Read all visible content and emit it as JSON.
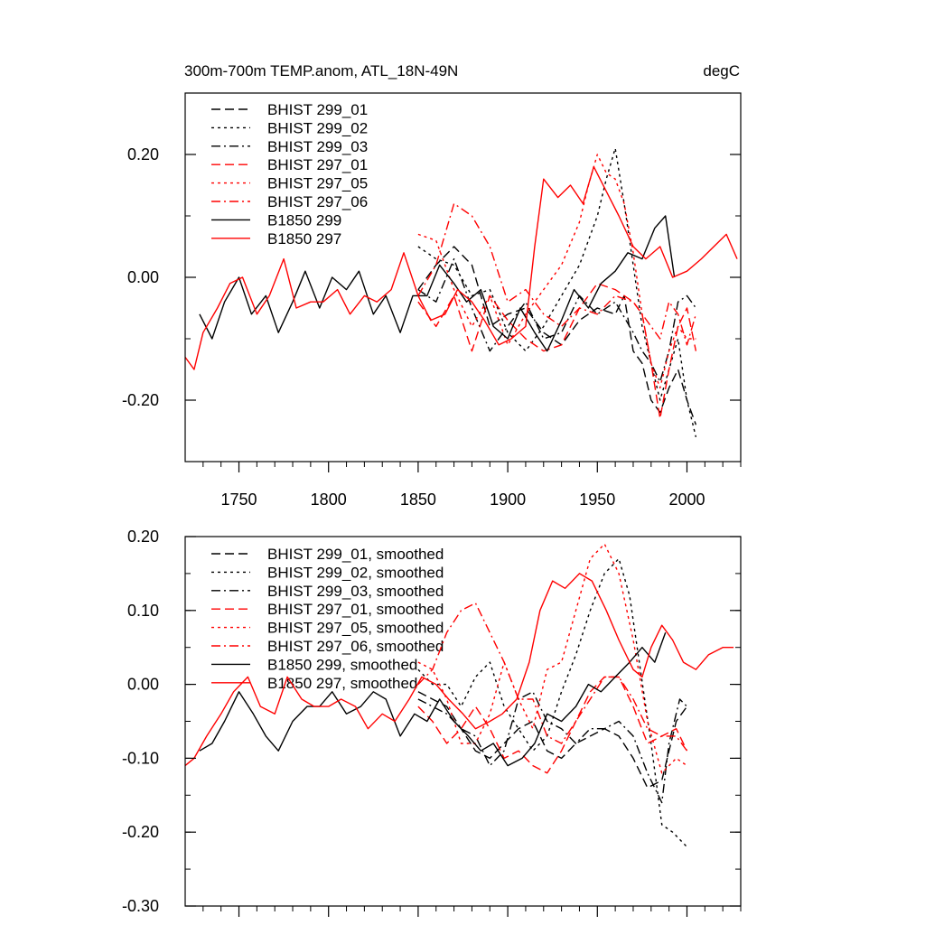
{
  "colors": {
    "black": "#000000",
    "red": "#ff0000"
  },
  "chart_data": [
    {
      "type": "line",
      "title": "300m-700m TEMP.anom, ATL_18N-49N",
      "units": "degC",
      "xlim": [
        1720,
        2030
      ],
      "ylim": [
        -0.3,
        0.3
      ],
      "xticks": [
        1750,
        1800,
        1850,
        1900,
        1950,
        2000
      ],
      "xtick_labels": [
        "1750",
        "1800",
        "1850",
        "1900",
        "1950",
        "2000"
      ],
      "yticks": [
        -0.2,
        0.0,
        0.2
      ],
      "ytick_labels": [
        "-0.20",
        "0.00",
        "0.20"
      ],
      "legend_position": "top-left",
      "series": [
        {
          "name": "BHIST 299_01",
          "color": "#000000",
          "dash": "dash",
          "x": [
            1850,
            1860,
            1870,
            1880,
            1890,
            1900,
            1910,
            1920,
            1930,
            1940,
            1950,
            1960,
            1965,
            1970,
            1975,
            1980,
            1985,
            1990,
            1995,
            2000,
            2005
          ],
          "y": [
            -0.02,
            0.02,
            0.05,
            0.02,
            -0.08,
            -0.06,
            -0.05,
            -0.09,
            -0.11,
            -0.07,
            -0.05,
            -0.06,
            -0.03,
            -0.12,
            -0.14,
            -0.2,
            -0.22,
            -0.18,
            -0.15,
            -0.2,
            -0.24
          ]
        },
        {
          "name": "BHIST 299_02",
          "color": "#000000",
          "dash": "dot",
          "x": [
            1850,
            1860,
            1870,
            1880,
            1890,
            1900,
            1910,
            1920,
            1930,
            1940,
            1950,
            1955,
            1960,
            1965,
            1970,
            1975,
            1980,
            1985,
            1990,
            1995,
            2000,
            2005
          ],
          "y": [
            0.05,
            0.03,
            0.02,
            -0.03,
            -0.02,
            -0.09,
            -0.12,
            -0.08,
            -0.03,
            0.02,
            0.1,
            0.16,
            0.21,
            0.12,
            0.02,
            -0.08,
            -0.14,
            -0.2,
            -0.15,
            -0.1,
            -0.2,
            -0.26
          ]
        },
        {
          "name": "BHIST 299_03",
          "color": "#000000",
          "dash": "dashdot",
          "x": [
            1850,
            1860,
            1870,
            1880,
            1890,
            1900,
            1910,
            1920,
            1930,
            1940,
            1950,
            1960,
            1970,
            1975,
            1980,
            1985,
            1990,
            1995,
            2000,
            2005
          ],
          "y": [
            -0.02,
            -0.04,
            0.03,
            -0.05,
            -0.12,
            -0.08,
            -0.04,
            -0.1,
            -0.09,
            -0.03,
            -0.06,
            -0.04,
            -0.09,
            -0.12,
            -0.14,
            -0.17,
            -0.12,
            -0.04,
            -0.03,
            -0.05
          ]
        },
        {
          "name": "BHIST 297_01",
          "color": "#ff0000",
          "dash": "dash",
          "x": [
            1850,
            1860,
            1870,
            1880,
            1890,
            1900,
            1910,
            1920,
            1930,
            1940,
            1950,
            1960,
            1970,
            1975,
            1980,
            1985,
            1990,
            1995,
            2000,
            2005
          ],
          "y": [
            -0.04,
            -0.08,
            -0.03,
            -0.12,
            -0.03,
            -0.07,
            -0.1,
            -0.12,
            -0.11,
            -0.05,
            -0.01,
            -0.02,
            -0.04,
            -0.06,
            -0.14,
            -0.23,
            -0.15,
            -0.08,
            -0.05,
            -0.12
          ]
        },
        {
          "name": "BHIST 297_05",
          "color": "#ff0000",
          "dash": "dot",
          "x": [
            1850,
            1860,
            1870,
            1880,
            1890,
            1900,
            1910,
            1920,
            1930,
            1940,
            1945,
            1950,
            1955,
            1960,
            1965,
            1970,
            1975,
            1980,
            1985,
            1990,
            1995,
            2000,
            2005
          ],
          "y": [
            0.07,
            0.06,
            -0.02,
            -0.08,
            -0.03,
            -0.11,
            -0.06,
            -0.02,
            0.02,
            0.09,
            0.15,
            0.2,
            0.17,
            0.16,
            0.12,
            0.04,
            -0.06,
            -0.14,
            -0.18,
            -0.12,
            -0.08,
            -0.1,
            -0.1
          ]
        },
        {
          "name": "BHIST 297_06",
          "color": "#ff0000",
          "dash": "dashdot",
          "x": [
            1850,
            1860,
            1870,
            1880,
            1890,
            1900,
            1910,
            1920,
            1930,
            1940,
            1950,
            1960,
            1970,
            1975,
            1980,
            1985,
            1990,
            1995,
            2000,
            2005
          ],
          "y": [
            -0.03,
            0.02,
            0.12,
            0.1,
            0.05,
            -0.04,
            -0.02,
            -0.06,
            -0.08,
            -0.05,
            -0.06,
            -0.03,
            -0.04,
            -0.06,
            -0.08,
            -0.1,
            -0.04,
            -0.06,
            -0.11,
            -0.06
          ]
        },
        {
          "name": "B1850 299",
          "color": "#000000",
          "dash": "solid",
          "x": [
            1728,
            1735,
            1742,
            1750,
            1757,
            1765,
            1772,
            1780,
            1787,
            1795,
            1802,
            1810,
            1817,
            1825,
            1832,
            1840,
            1847,
            1855,
            1862,
            1870,
            1877,
            1885,
            1892,
            1900,
            1907,
            1915,
            1922,
            1930,
            1937,
            1945,
            1952,
            1960,
            1967,
            1975,
            1982,
            1988,
            1993
          ],
          "y": [
            -0.06,
            -0.1,
            -0.04,
            0.0,
            -0.06,
            -0.03,
            -0.09,
            -0.04,
            0.01,
            -0.05,
            0.0,
            -0.02,
            0.01,
            -0.06,
            -0.03,
            -0.09,
            -0.03,
            -0.03,
            0.02,
            -0.01,
            -0.04,
            -0.02,
            -0.08,
            -0.1,
            -0.05,
            -0.09,
            -0.12,
            -0.07,
            -0.02,
            -0.05,
            -0.01,
            0.01,
            0.04,
            0.03,
            0.08,
            0.1,
            0.0
          ]
        },
        {
          "name": "B1850 297",
          "color": "#ff0000",
          "dash": "solid",
          "x": [
            1720,
            1725,
            1730,
            1738,
            1745,
            1752,
            1760,
            1767,
            1775,
            1782,
            1790,
            1797,
            1805,
            1812,
            1820,
            1827,
            1835,
            1842,
            1850,
            1857,
            1865,
            1872,
            1880,
            1887,
            1895,
            1902,
            1910,
            1915,
            1920,
            1928,
            1935,
            1942,
            1948,
            1955,
            1962,
            1970,
            1977,
            1985,
            1992,
            2000,
            2008,
            2015,
            2022,
            2028
          ],
          "y": [
            -0.13,
            -0.15,
            -0.09,
            -0.05,
            -0.01,
            0.0,
            -0.06,
            -0.03,
            0.03,
            -0.05,
            -0.04,
            -0.04,
            -0.02,
            -0.06,
            -0.03,
            -0.04,
            -0.02,
            0.04,
            -0.03,
            -0.07,
            -0.06,
            -0.02,
            -0.04,
            -0.07,
            -0.11,
            -0.1,
            -0.08,
            0.05,
            0.16,
            0.13,
            0.15,
            0.12,
            0.18,
            0.14,
            0.1,
            0.05,
            0.03,
            0.05,
            0.0,
            0.01,
            0.03,
            0.05,
            0.07,
            0.03
          ]
        }
      ]
    },
    {
      "type": "line",
      "title": "",
      "xlim": [
        1720,
        2030
      ],
      "ylim": [
        -0.3,
        0.2
      ],
      "xticks": [
        1750,
        1800,
        1850,
        1900,
        1950,
        2000
      ],
      "yticks": [
        -0.3,
        -0.2,
        -0.1,
        0.0,
        0.1,
        0.2
      ],
      "ytick_labels": [
        "-0.30",
        "-0.20",
        "-0.10",
        "0.00",
        "0.10",
        "0.20"
      ],
      "legend_position": "top-left",
      "series": [
        {
          "name": "BHIST 299_01, smoothed",
          "color": "#000000",
          "dash": "dash",
          "x": [
            1850,
            1858,
            1866,
            1874,
            1882,
            1890,
            1898,
            1906,
            1914,
            1922,
            1930,
            1938,
            1946,
            1954,
            1962,
            1970,
            1978,
            1986,
            1994,
            2000
          ],
          "y": [
            -0.01,
            -0.02,
            -0.03,
            -0.06,
            -0.09,
            -0.1,
            -0.08,
            -0.06,
            -0.05,
            -0.09,
            -0.1,
            -0.08,
            -0.07,
            -0.06,
            -0.07,
            -0.1,
            -0.14,
            -0.13,
            -0.05,
            -0.03
          ]
        },
        {
          "name": "BHIST 299_02, smoothed",
          "color": "#000000",
          "dash": "dot",
          "x": [
            1850,
            1858,
            1866,
            1874,
            1882,
            1890,
            1898,
            1906,
            1914,
            1922,
            1930,
            1938,
            1946,
            1954,
            1962,
            1968,
            1974,
            1980,
            1986,
            1992,
            2000
          ],
          "y": [
            0.02,
            0.0,
            0.0,
            -0.03,
            0.01,
            0.03,
            -0.03,
            -0.06,
            -0.09,
            -0.07,
            -0.01,
            0.04,
            0.1,
            0.15,
            0.17,
            0.12,
            0.02,
            -0.08,
            -0.19,
            -0.2,
            -0.22
          ]
        },
        {
          "name": "BHIST 299_03, smoothed",
          "color": "#000000",
          "dash": "dashdot",
          "x": [
            1850,
            1858,
            1866,
            1874,
            1882,
            1890,
            1898,
            1906,
            1914,
            1922,
            1930,
            1938,
            1946,
            1954,
            1962,
            1970,
            1978,
            1986,
            1990,
            1996,
            2000
          ],
          "y": [
            -0.02,
            -0.03,
            -0.04,
            -0.06,
            -0.07,
            -0.11,
            -0.09,
            -0.02,
            -0.01,
            -0.05,
            -0.06,
            -0.08,
            -0.06,
            -0.06,
            -0.05,
            -0.07,
            -0.12,
            -0.16,
            -0.08,
            -0.02,
            -0.03
          ]
        },
        {
          "name": "BHIST 297_01, smoothed",
          "color": "#ff0000",
          "dash": "dash",
          "x": [
            1850,
            1858,
            1866,
            1874,
            1882,
            1890,
            1898,
            1906,
            1914,
            1922,
            1930,
            1938,
            1946,
            1954,
            1962,
            1970,
            1978,
            1986,
            1994,
            2000
          ],
          "y": [
            -0.03,
            -0.05,
            -0.08,
            -0.06,
            -0.03,
            -0.06,
            -0.1,
            -0.09,
            -0.11,
            -0.12,
            -0.09,
            -0.05,
            -0.01,
            0.01,
            0.01,
            -0.03,
            -0.08,
            -0.07,
            -0.06,
            -0.09
          ]
        },
        {
          "name": "BHIST 297_05, smoothed",
          "color": "#ff0000",
          "dash": "dot",
          "x": [
            1850,
            1858,
            1866,
            1874,
            1882,
            1890,
            1898,
            1906,
            1914,
            1922,
            1930,
            1938,
            1946,
            1954,
            1962,
            1970,
            1978,
            1986,
            1994,
            2000
          ],
          "y": [
            0.03,
            0.02,
            -0.02,
            -0.08,
            -0.08,
            -0.04,
            0.03,
            -0.02,
            -0.06,
            0.02,
            0.03,
            0.1,
            0.17,
            0.19,
            0.15,
            0.06,
            -0.05,
            -0.12,
            -0.1,
            -0.11
          ]
        },
        {
          "name": "BHIST 297_06, smoothed",
          "color": "#ff0000",
          "dash": "dashdot",
          "x": [
            1850,
            1858,
            1866,
            1874,
            1882,
            1890,
            1898,
            1906,
            1914,
            1922,
            1930,
            1938,
            1946,
            1954,
            1962,
            1970,
            1978,
            1986,
            1994,
            2000
          ],
          "y": [
            0.0,
            0.02,
            0.07,
            0.1,
            0.11,
            0.07,
            0.03,
            -0.02,
            -0.02,
            -0.07,
            -0.08,
            -0.05,
            -0.02,
            0.01,
            0.01,
            -0.02,
            -0.06,
            -0.07,
            -0.07,
            -0.09
          ]
        },
        {
          "name": "B1850 299, smoothed",
          "color": "#000000",
          "dash": "solid",
          "x": [
            1728,
            1735,
            1742,
            1750,
            1758,
            1765,
            1772,
            1780,
            1788,
            1795,
            1802,
            1810,
            1818,
            1825,
            1832,
            1840,
            1848,
            1855,
            1862,
            1870,
            1878,
            1885,
            1892,
            1900,
            1908,
            1915,
            1922,
            1930,
            1938,
            1945,
            1952,
            1960,
            1968,
            1975,
            1982,
            1988
          ],
          "y": [
            -0.09,
            -0.08,
            -0.05,
            -0.01,
            -0.04,
            -0.07,
            -0.09,
            -0.05,
            -0.03,
            -0.03,
            -0.01,
            -0.04,
            -0.03,
            -0.01,
            -0.02,
            -0.07,
            -0.04,
            -0.05,
            -0.02,
            -0.05,
            -0.07,
            -0.09,
            -0.08,
            -0.11,
            -0.1,
            -0.08,
            -0.04,
            -0.05,
            -0.03,
            0.0,
            -0.01,
            0.01,
            0.03,
            0.05,
            0.03,
            0.07
          ]
        },
        {
          "name": "B1850 297, smoothed",
          "color": "#ff0000",
          "dash": "solid",
          "x": [
            1720,
            1725,
            1732,
            1740,
            1747,
            1755,
            1762,
            1770,
            1777,
            1785,
            1792,
            1800,
            1807,
            1815,
            1822,
            1830,
            1837,
            1845,
            1852,
            1860,
            1867,
            1875,
            1882,
            1890,
            1897,
            1905,
            1912,
            1918,
            1925,
            1932,
            1940,
            1947,
            1955,
            1962,
            1970,
            1975,
            1980,
            1986,
            1992,
            1998,
            2005,
            2012,
            2020,
            2026
          ],
          "y": [
            -0.11,
            -0.1,
            -0.07,
            -0.04,
            -0.01,
            0.01,
            -0.03,
            -0.04,
            0.01,
            -0.02,
            -0.03,
            -0.03,
            -0.02,
            -0.03,
            -0.06,
            -0.04,
            -0.05,
            -0.02,
            0.01,
            0.0,
            -0.02,
            -0.04,
            -0.06,
            -0.05,
            -0.04,
            -0.02,
            0.03,
            0.1,
            0.14,
            0.13,
            0.15,
            0.14,
            0.1,
            0.06,
            0.02,
            0.01,
            0.05,
            0.08,
            0.06,
            0.03,
            0.02,
            0.04,
            0.05,
            0.05
          ]
        }
      ]
    }
  ]
}
